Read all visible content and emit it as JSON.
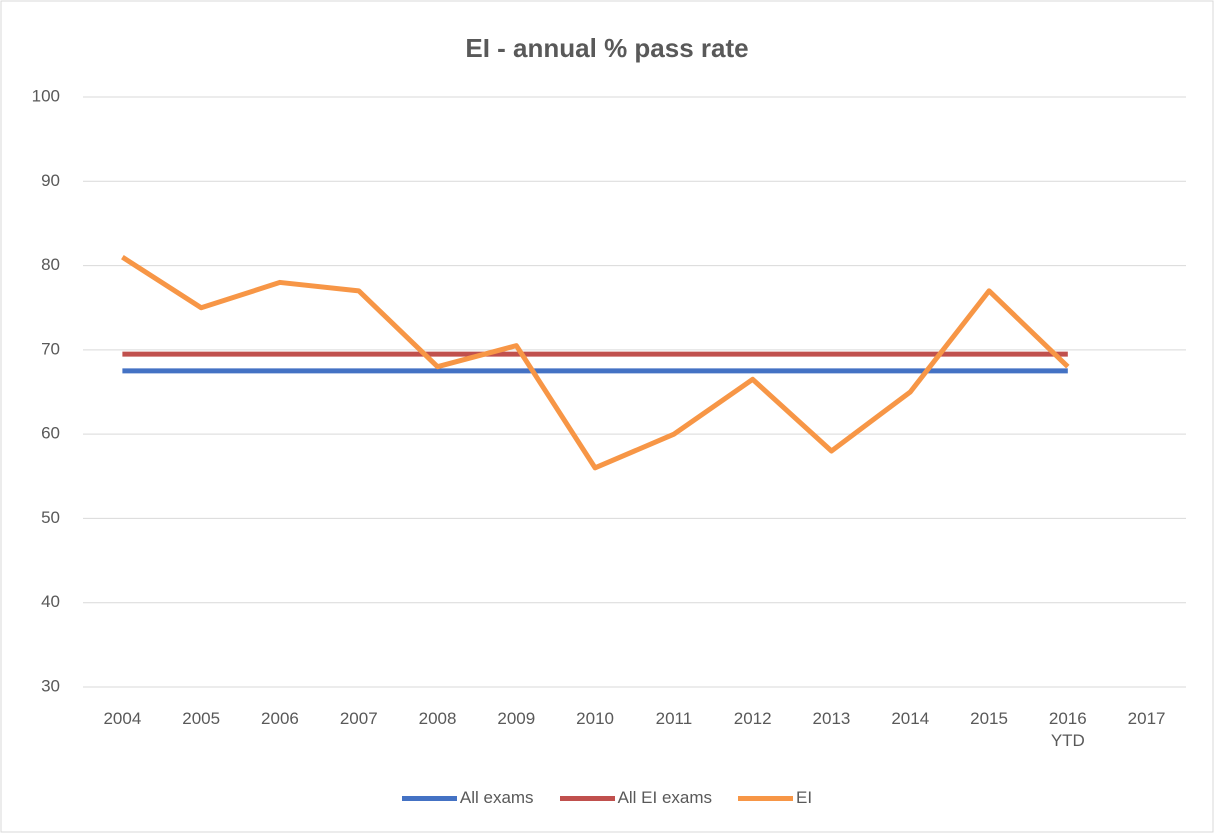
{
  "chart_data": {
    "type": "line",
    "title": "EI - annual % pass rate",
    "categories": [
      "2004",
      "2005",
      "2006",
      "2007",
      "2008",
      "2009",
      "2010",
      "2011",
      "2012",
      "2013",
      "2014",
      "2015",
      "2016\nYTD",
      "2017"
    ],
    "series": [
      {
        "name": "All exams",
        "color": "#4472c4",
        "values": [
          67.5,
          67.5,
          67.5,
          67.5,
          67.5,
          67.5,
          67.5,
          67.5,
          67.5,
          67.5,
          67.5,
          67.5,
          67.5,
          null
        ]
      },
      {
        "name": "All EI exams",
        "color": "#c0504d",
        "values": [
          69.5,
          69.5,
          69.5,
          69.5,
          69.5,
          69.5,
          69.5,
          69.5,
          69.5,
          69.5,
          69.5,
          69.5,
          69.5,
          null
        ]
      },
      {
        "name": "EI",
        "color": "#f79646",
        "values": [
          81,
          75,
          78,
          77,
          68,
          70.5,
          56,
          60,
          66.5,
          58,
          65,
          77,
          68,
          null
        ]
      }
    ],
    "ylim": [
      30,
      100
    ],
    "yticks": [
      30,
      40,
      50,
      60,
      70,
      80,
      90,
      100
    ],
    "grid": true,
    "legend": "bottom"
  }
}
